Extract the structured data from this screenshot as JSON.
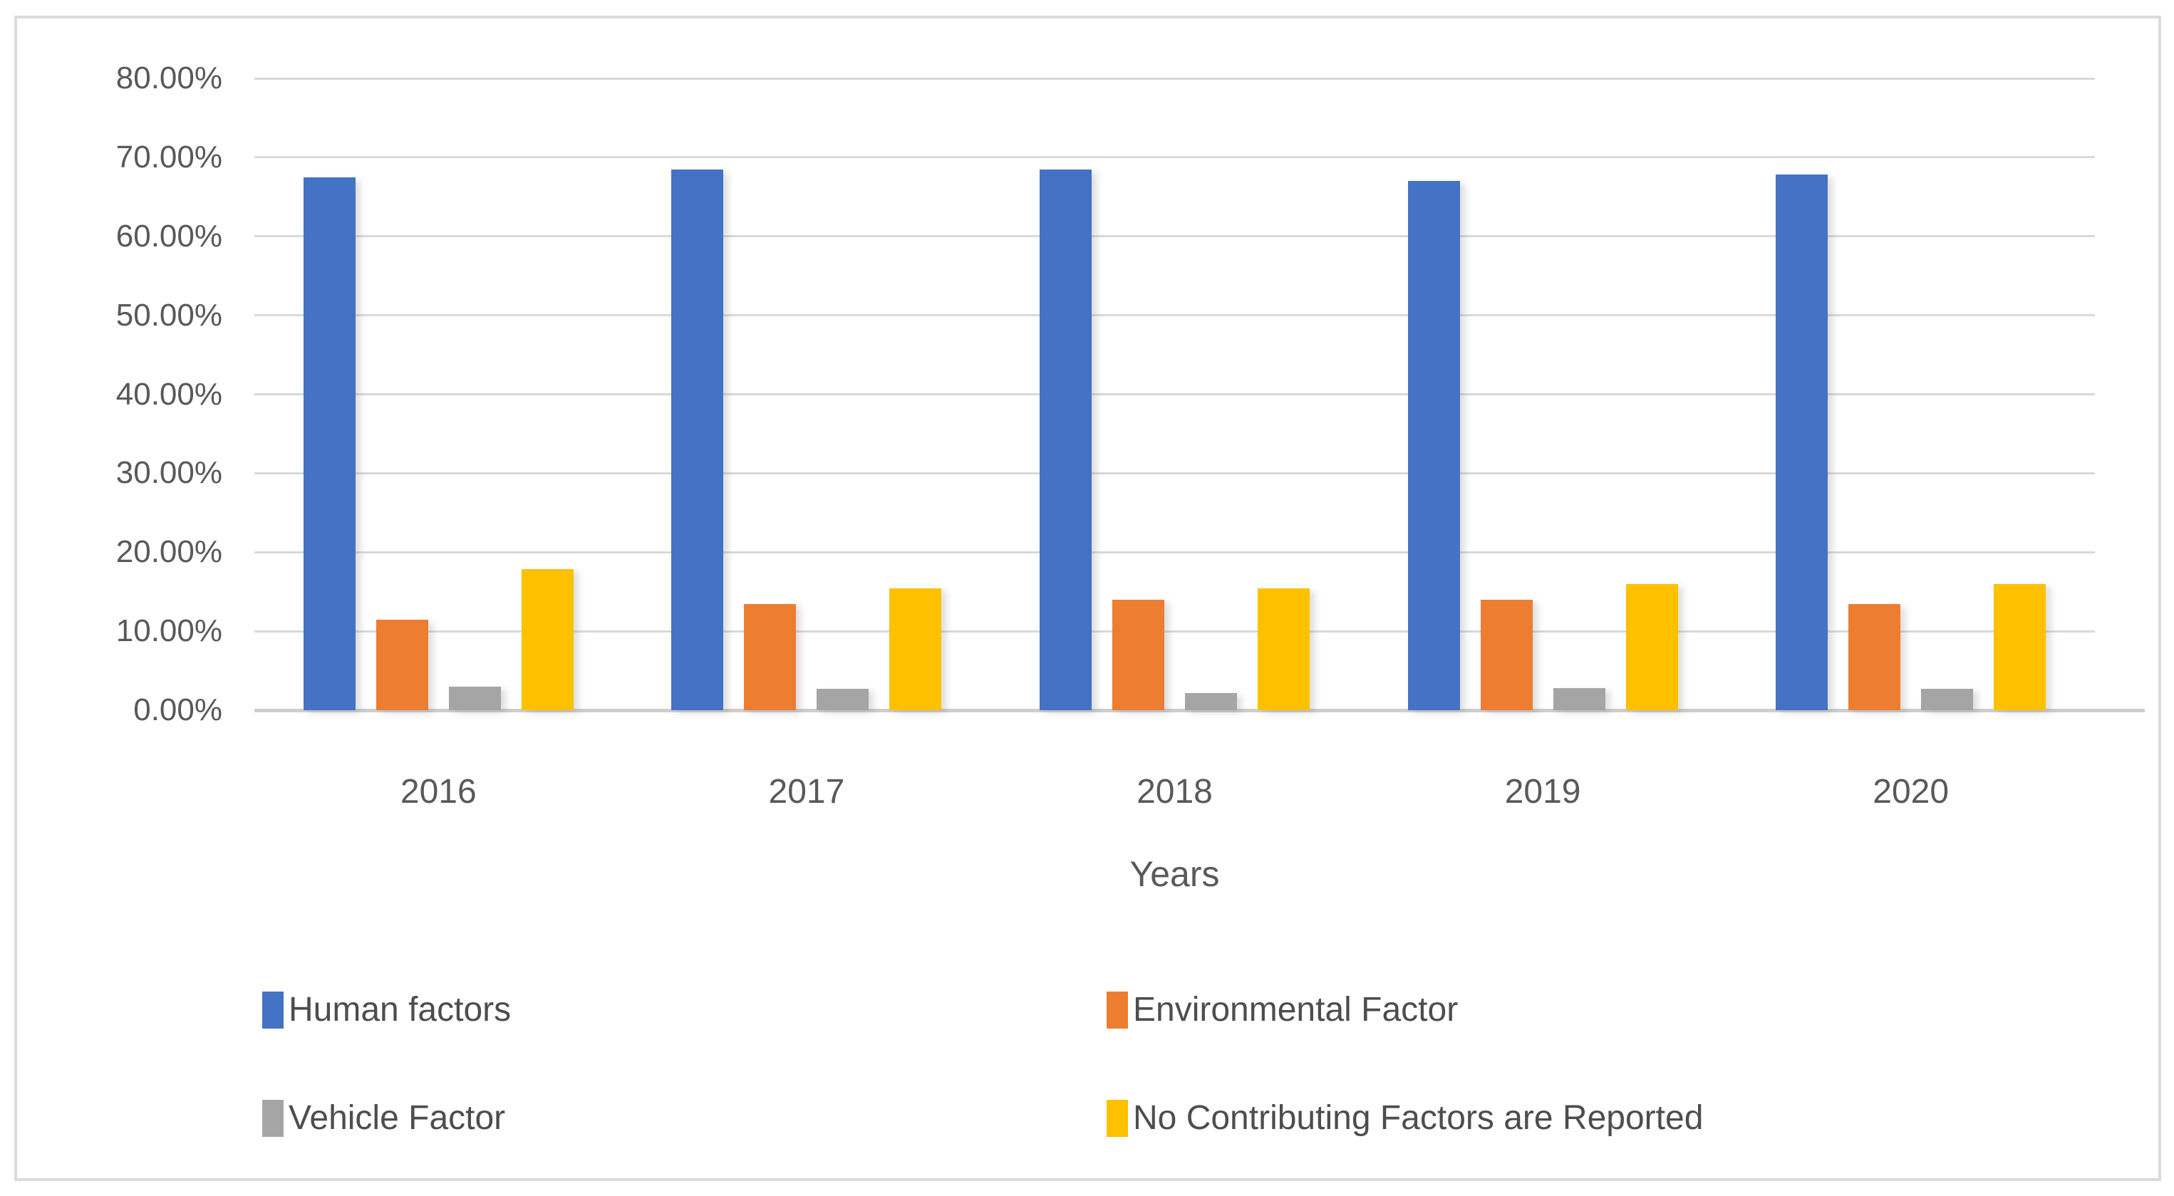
{
  "chart_data": {
    "type": "bar",
    "title": "",
    "categories": [
      "2016",
      "2017",
      "2018",
      "2019",
      "2020"
    ],
    "series": [
      {
        "name": "Human factors",
        "color": "#4472C4",
        "values": [
          67.5,
          68.5,
          68.5,
          67.0,
          67.8
        ]
      },
      {
        "name": "Environmental Factor",
        "color": "#ED7D31",
        "values": [
          11.5,
          13.4,
          14.0,
          14.0,
          13.4
        ]
      },
      {
        "name": "Vehicle Factor",
        "color": "#A5A5A5",
        "values": [
          3.0,
          2.7,
          2.2,
          2.8,
          2.7
        ]
      },
      {
        "name": "No Contributing Factors are Reported",
        "color": "#FFC000",
        "values": [
          17.9,
          15.4,
          15.4,
          16.0,
          16.0
        ]
      }
    ],
    "xlabel": "Years",
    "ylabel": "",
    "ylim": [
      0,
      80
    ],
    "ytick_step": 10,
    "ytick_labels": [
      "0.00%",
      "10.00%",
      "20.00%",
      "30.00%",
      "40.00%",
      "50.00%",
      "60.00%",
      "70.00%",
      "80.00%"
    ],
    "grid": true,
    "legend_position": "bottom"
  },
  "colors": {
    "gridline": "#D9D9D9",
    "axis_line": "#CFCDCD",
    "frame_border": "#DBDBDB",
    "tick_text": "#595959",
    "legend_text": "#4D4D4D",
    "background": "#FFFFFF"
  }
}
